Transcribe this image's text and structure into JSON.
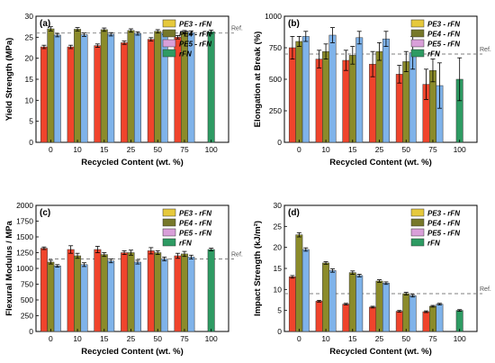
{
  "colors": {
    "PE3": "#f0442c",
    "PE4": "#8b8b2a",
    "PE5": "#7fb3ea",
    "rFN": "#2e9b63",
    "ref_line": "#7f7f7f",
    "legend_PE3": "#e6c93c",
    "legend_PE4": "#76782a",
    "legend_PE5": "#d99fd9",
    "legend_rFN": "#2e9b63",
    "overlay_PE3": "#e8c63a",
    "overlay_PE5": "#c88ee0",
    "dark_red": "#a93324"
  },
  "chart_data": [
    {
      "type": "bar",
      "panel_label": "(a)",
      "title": "",
      "xlabel": "Recycled Content (wt. %)",
      "ylabel": "Yield Strength (MPa)",
      "ylim": [
        0,
        30
      ],
      "yticks": [
        "0",
        "5",
        "10",
        "15",
        "20",
        "25",
        "30"
      ],
      "categories": [
        "0",
        "10",
        "15",
        "25",
        "50",
        "75",
        "100"
      ],
      "ref_label": "Ref.",
      "ref_value": 26,
      "legend_position": "top-right",
      "legend": [
        "PE3 - rFN",
        "PE4 - rFN",
        "PE5 - rFN",
        "rFN"
      ],
      "series": [
        {
          "name": "PE3 - rFN",
          "values": [
            22.7,
            22.7,
            23.0,
            23.7,
            24.5,
            25.0,
            null
          ],
          "errors": [
            0.4,
            0.4,
            0.4,
            0.4,
            0.4,
            0.4,
            null
          ]
        },
        {
          "name": "PE4 - rFN",
          "values": [
            27.0,
            26.9,
            26.8,
            26.6,
            26.4,
            26.2,
            null
          ],
          "errors": [
            0.5,
            0.4,
            0.4,
            0.4,
            0.4,
            0.4,
            null
          ]
        },
        {
          "name": "PE5 - rFN",
          "values": [
            25.5,
            25.6,
            25.7,
            25.9,
            26.0,
            26.1,
            null
          ],
          "errors": [
            0.4,
            0.4,
            0.4,
            0.4,
            0.4,
            0.4,
            null
          ]
        },
        {
          "name": "rFN",
          "values": [
            null,
            null,
            null,
            null,
            null,
            null,
            26.3
          ],
          "errors": [
            null,
            null,
            null,
            null,
            null,
            null,
            0.4
          ]
        }
      ]
    },
    {
      "type": "bar",
      "panel_label": "(b)",
      "title": "",
      "xlabel": "Recycled Content (wt. %)",
      "ylabel": "Elongation at Break (%)",
      "ylim": [
        0,
        1000
      ],
      "yticks": [
        "0",
        "250",
        "500",
        "750",
        "1000"
      ],
      "categories": [
        "0",
        "10",
        "15",
        "25",
        "50",
        "75",
        "100"
      ],
      "ref_label": "Ref.",
      "ref_value": 700,
      "legend_position": "top-right",
      "legend": [
        "PE3 - rFN",
        "PE4 - rFN",
        "PE5 - rFN",
        "rFN"
      ],
      "series": [
        {
          "name": "PE3 - rFN",
          "values": [
            750,
            660,
            650,
            620,
            540,
            460,
            null
          ],
          "errors": [
            90,
            70,
            80,
            100,
            70,
            120,
            null
          ]
        },
        {
          "name": "PE4 - rFN",
          "values": [
            800,
            720,
            690,
            720,
            640,
            570,
            null
          ],
          "errors": [
            40,
            60,
            70,
            70,
            80,
            90,
            null
          ]
        },
        {
          "name": "PE5 - rFN",
          "values": [
            840,
            850,
            830,
            820,
            710,
            450,
            null
          ],
          "errors": [
            40,
            60,
            50,
            60,
            130,
            180,
            null
          ]
        },
        {
          "name": "rFN",
          "values": [
            null,
            null,
            null,
            null,
            null,
            null,
            500
          ],
          "errors": [
            null,
            null,
            null,
            null,
            null,
            null,
            170
          ]
        }
      ]
    },
    {
      "type": "bar",
      "panel_label": "(c)",
      "title": "",
      "xlabel": "Recycled Content (wt. %)",
      "ylabel": "Flexural Modulus / MPa",
      "ylim": [
        0,
        2000
      ],
      "yticks": [
        "0",
        "250",
        "500",
        "750",
        "1000",
        "1250",
        "1500",
        "1750",
        "2000"
      ],
      "categories": [
        "0",
        "10",
        "15",
        "25",
        "50",
        "75",
        "100"
      ],
      "ref_label": "Ref.",
      "ref_value": 1150,
      "legend_position": "top-right",
      "legend": [
        "PE3 - rFN",
        "PE4 - rFN",
        "PE5 - rFN",
        "rFN"
      ],
      "series": [
        {
          "name": "PE3 - rFN",
          "values": [
            1320,
            1300,
            1300,
            1250,
            1280,
            1200,
            null
          ],
          "errors": [
            20,
            60,
            50,
            30,
            50,
            40,
            null
          ]
        },
        {
          "name": "PE4 - rFN",
          "values": [
            1100,
            1200,
            1220,
            1250,
            1250,
            1230,
            null
          ],
          "errors": [
            30,
            40,
            30,
            40,
            30,
            40,
            null
          ]
        },
        {
          "name": "PE5 - rFN",
          "values": [
            1040,
            1060,
            1120,
            1100,
            1150,
            1180,
            null
          ],
          "errors": [
            20,
            30,
            30,
            30,
            30,
            30,
            null
          ]
        },
        {
          "name": "rFN",
          "values": [
            null,
            null,
            null,
            null,
            null,
            null,
            1300
          ],
          "errors": [
            null,
            null,
            null,
            null,
            null,
            null,
            20
          ]
        }
      ]
    },
    {
      "type": "bar",
      "panel_label": "(d)",
      "title": "",
      "xlabel": "Recycled Content (wt. %)",
      "ylabel": "Impact Strength (kJ/m²)",
      "ylim": [
        0,
        30
      ],
      "yticks": [
        "0",
        "5",
        "10",
        "15",
        "20",
        "25",
        "30"
      ],
      "categories": [
        "0",
        "10",
        "15",
        "25",
        "50",
        "75",
        "100"
      ],
      "ref_label": "Ref.",
      "ref_value": 9,
      "legend_position": "top-right",
      "legend": [
        "PE3 - rFN",
        "PE4 - rFN",
        "PE5 - rFN",
        "rFN"
      ],
      "series": [
        {
          "name": "PE3 - rFN",
          "values": [
            13.0,
            7.2,
            6.5,
            5.8,
            4.8,
            4.7,
            null
          ],
          "errors": [
            0.3,
            0.2,
            0.2,
            0.2,
            0.2,
            0.2,
            null
          ]
        },
        {
          "name": "PE4 - rFN",
          "values": [
            23.0,
            16.3,
            14.0,
            12.0,
            9.0,
            6.0,
            null
          ],
          "errors": [
            0.5,
            0.3,
            0.4,
            0.3,
            0.3,
            0.2,
            null
          ]
        },
        {
          "name": "PE5 - rFN",
          "values": [
            19.5,
            14.5,
            13.3,
            11.5,
            8.5,
            6.5,
            null
          ],
          "errors": [
            0.4,
            0.4,
            0.3,
            0.3,
            0.3,
            0.2,
            null
          ]
        },
        {
          "name": "rFN",
          "values": [
            null,
            null,
            null,
            null,
            null,
            null,
            5.0
          ],
          "errors": [
            null,
            null,
            null,
            null,
            null,
            null,
            0.2
          ]
        }
      ]
    }
  ]
}
